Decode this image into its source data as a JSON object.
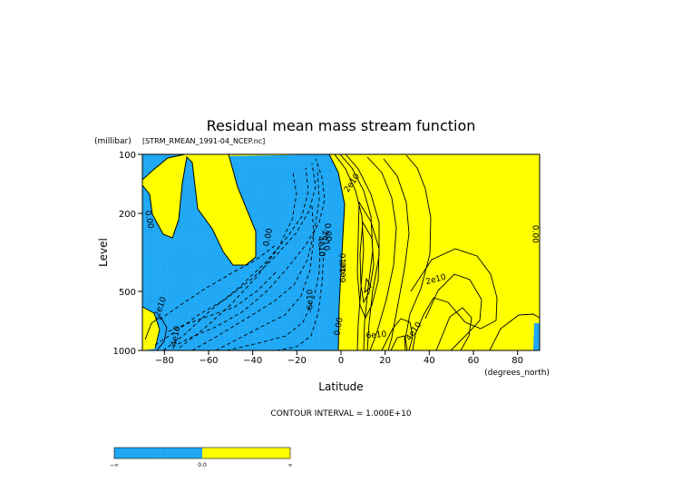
{
  "chart_data": {
    "type": "contour",
    "title": "Residual mean mass stream function",
    "subtitle": "[STRM_RMEAN_1991-04_NCEP.nc]",
    "xlabel": "Latitude",
    "ylabel": "Level",
    "xunits": "(degrees_north)",
    "yunits": "(millibar)",
    "xlim": [
      -90,
      90
    ],
    "ylim": [
      1000,
      100
    ],
    "yscale": "log",
    "xticks": [
      -80,
      -60,
      -40,
      -20,
      0,
      20,
      40,
      60,
      80
    ],
    "yticks": [
      100,
      200,
      500,
      1000
    ],
    "xtick_labels": [
      "−80",
      "−60",
      "−40",
      "−20",
      "0",
      "20",
      "40",
      "60",
      "80"
    ],
    "ytick_labels": [
      "100",
      "200",
      "500",
      "1000"
    ],
    "contour_interval_text": "CONTOUR INTERVAL = 1.000E+10",
    "fill_negative_color": "#1ea8f5",
    "fill_positive_color": "#ffff00",
    "contour_labels": [
      {
        "text": "2e10",
        "lat": 5,
        "lev": 140,
        "rot": -55
      },
      {
        "text": "0.00",
        "lat": -87,
        "lev": 215,
        "rot": 80
      },
      {
        "text": "0.00",
        "lat": -33,
        "lev": 265,
        "rot": -78
      },
      {
        "text": "0.00",
        "lat": -6,
        "lev": 250,
        "rot": 85
      },
      {
        "text": "2e10",
        "lat": -7,
        "lev": 275,
        "rot": 85
      },
      {
        "text": "4e10",
        "lat": -9,
        "lev": 295,
        "rot": 85
      },
      {
        "text": "0.00",
        "lat": 88,
        "lev": 255,
        "rot": 90
      },
      {
        "text": "4e10",
        "lat": 1,
        "lev": 360,
        "rot": -90
      },
      {
        "text": "6e10",
        "lat": 1,
        "lev": 400,
        "rot": -90
      },
      {
        "text": "2e10",
        "lat": 43,
        "lev": 435,
        "rot": -15
      },
      {
        "text": "-6e10",
        "lat": -14,
        "lev": 560,
        "rot": -90
      },
      {
        "text": "-2e10",
        "lat": -82,
        "lev": 610,
        "rot": -70
      },
      {
        "text": "-4e10",
        "lat": -75,
        "lev": 860,
        "rot": -80
      },
      {
        "text": "6e10",
        "lat": 16,
        "lev": 835,
        "rot": -5
      },
      {
        "text": "4e10",
        "lat": 33,
        "lev": 800,
        "rot": -55
      },
      {
        "text": "0.00",
        "lat": -1,
        "lev": 755,
        "rot": -80
      }
    ]
  },
  "colorbar": {
    "labels": [
      "−∞",
      "0.0",
      "∞"
    ],
    "colors": [
      "#1ea8f5",
      "#ffff00"
    ]
  }
}
